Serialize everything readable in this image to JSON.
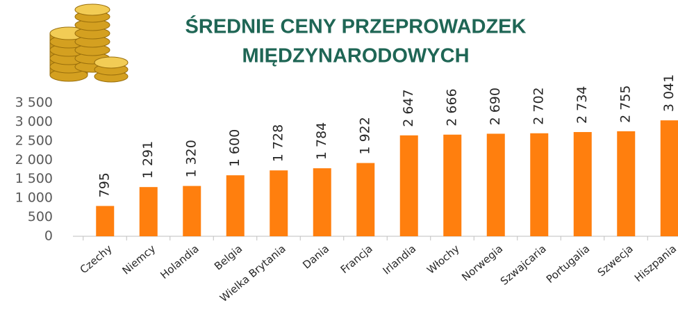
{
  "chart_data": {
    "type": "bar",
    "title": [
      "ŚREDNIE CENY PRZEPROWADZEK",
      "MIĘDZYNARODOWYCH"
    ],
    "categories": [
      "Czechy",
      "Niemcy",
      "Holandia",
      "Belgia",
      "Wielka Brytania",
      "Dania",
      "Francja",
      "Irlandia",
      "Włochy",
      "Norwegia",
      "Szwajcaria",
      "Portugalia",
      "Szwecja",
      "Hiszpania"
    ],
    "values": [
      795,
      1291,
      1320,
      1600,
      1728,
      1784,
      1922,
      2647,
      2666,
      2690,
      2702,
      2734,
      2755,
      3041
    ],
    "value_labels": [
      "795",
      "1 291",
      "1 320",
      "1 600",
      "1 728",
      "1 784",
      "1 922",
      "2 647",
      "2 666",
      "2 690",
      "2 702",
      "2 734",
      "2 755",
      "3 041"
    ],
    "color": "#ff7f0e",
    "ylim": [
      0,
      3500
    ],
    "yticks": [
      0,
      500,
      {
        "value": 1000,
        "label": "1 000"
      },
      {
        "value": 1500,
        "label": "1 500"
      },
      {
        "value": 2000,
        "label": "2 000"
      },
      {
        "value": 2500,
        "label": "2 500"
      },
      {
        "value": 3000,
        "label": "3 000"
      },
      {
        "value": 3500,
        "label": "3 500"
      }
    ],
    "grid": false
  }
}
